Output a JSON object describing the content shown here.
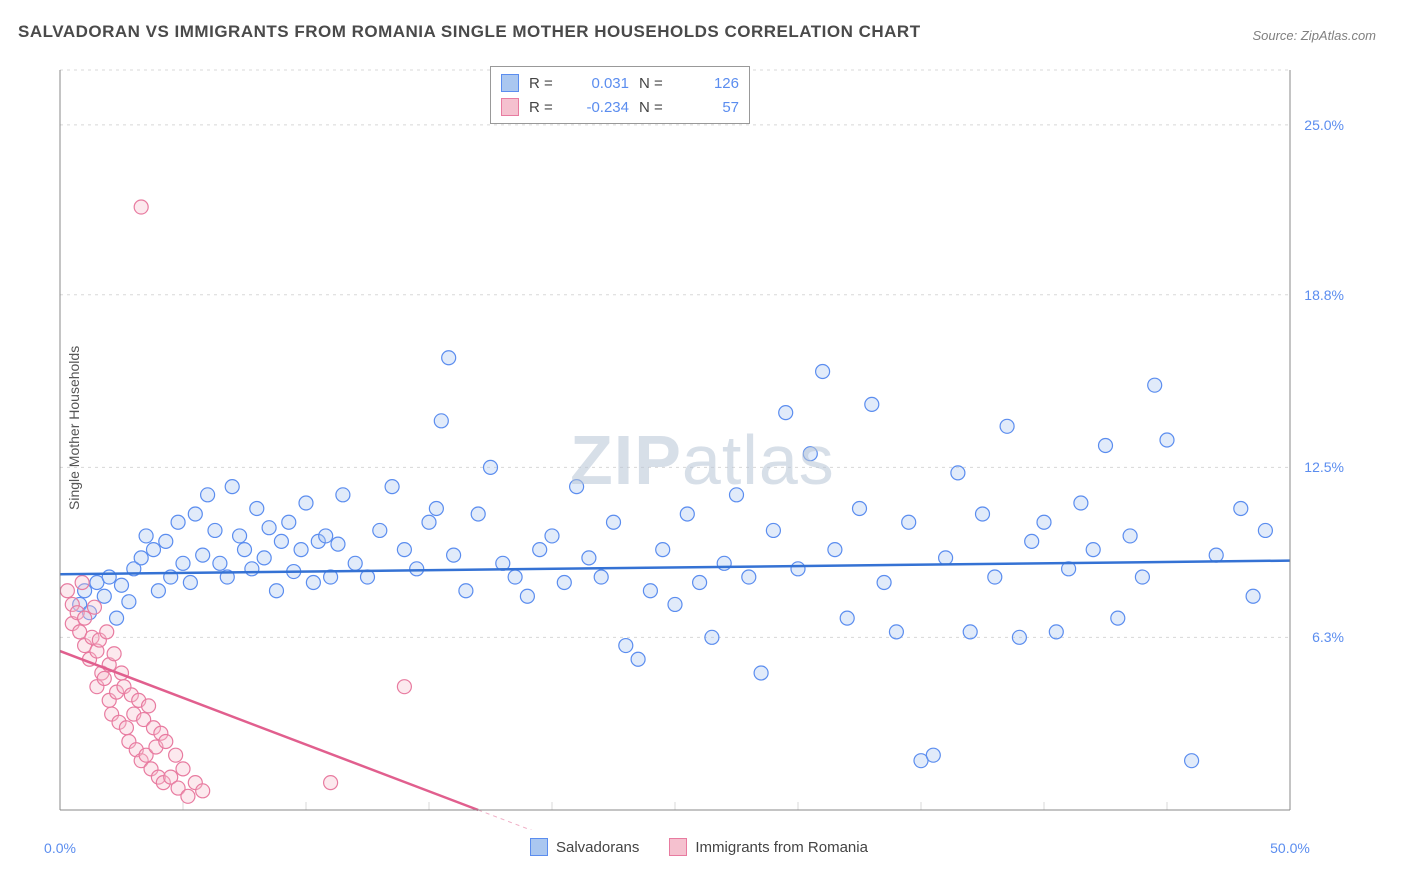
{
  "title": "SALVADORAN VS IMMIGRANTS FROM ROMANIA SINGLE MOTHER HOUSEHOLDS CORRELATION CHART",
  "source": "Source: ZipAtlas.com",
  "ylabel": "Single Mother Households",
  "watermark_a": "ZIP",
  "watermark_b": "atlas",
  "chart": {
    "type": "scatter",
    "xlim": [
      0,
      50
    ],
    "ylim": [
      0,
      27
    ],
    "ytick_values": [
      6.3,
      12.5,
      18.8,
      25.0
    ],
    "ytick_labels": [
      "6.3%",
      "12.5%",
      "18.8%",
      "25.0%"
    ],
    "xtick_values": [
      0,
      50
    ],
    "xtick_labels": [
      "0.0%",
      "50.0%"
    ],
    "minor_gridlines_y_step": 6.25,
    "minor_gridlines_x_count": 10,
    "grid_color": "#d8d8d8",
    "axis_color": "#888888",
    "background_color": "#ffffff",
    "marker_radius": 7,
    "marker_stroke_width": 1.2,
    "marker_fill_opacity": 0.35,
    "trend_line_width": 2.5,
    "series": [
      {
        "name": "Salvadorans",
        "color_fill": "#aac7f0",
        "color_stroke": "#5b8def",
        "trend_color": "#3572d4",
        "R": "0.031",
        "N": "126",
        "trend": {
          "x1": 0,
          "y1": 8.6,
          "x2": 50,
          "y2": 9.1
        },
        "points": [
          [
            0.8,
            7.5
          ],
          [
            1.0,
            8.0
          ],
          [
            1.2,
            7.2
          ],
          [
            1.5,
            8.3
          ],
          [
            1.8,
            7.8
          ],
          [
            2.0,
            8.5
          ],
          [
            2.3,
            7.0
          ],
          [
            2.5,
            8.2
          ],
          [
            2.8,
            7.6
          ],
          [
            3.0,
            8.8
          ],
          [
            3.3,
            9.2
          ],
          [
            3.5,
            10.0
          ],
          [
            3.8,
            9.5
          ],
          [
            4.0,
            8.0
          ],
          [
            4.3,
            9.8
          ],
          [
            4.5,
            8.5
          ],
          [
            4.8,
            10.5
          ],
          [
            5.0,
            9.0
          ],
          [
            5.3,
            8.3
          ],
          [
            5.5,
            10.8
          ],
          [
            5.8,
            9.3
          ],
          [
            6.0,
            11.5
          ],
          [
            6.3,
            10.2
          ],
          [
            6.5,
            9.0
          ],
          [
            6.8,
            8.5
          ],
          [
            7.0,
            11.8
          ],
          [
            7.3,
            10.0
          ],
          [
            7.5,
            9.5
          ],
          [
            7.8,
            8.8
          ],
          [
            8.0,
            11.0
          ],
          [
            8.3,
            9.2
          ],
          [
            8.5,
            10.3
          ],
          [
            8.8,
            8.0
          ],
          [
            9.0,
            9.8
          ],
          [
            9.3,
            10.5
          ],
          [
            9.5,
            8.7
          ],
          [
            9.8,
            9.5
          ],
          [
            10.0,
            11.2
          ],
          [
            10.3,
            8.3
          ],
          [
            10.5,
            9.8
          ],
          [
            10.8,
            10.0
          ],
          [
            11.0,
            8.5
          ],
          [
            11.3,
            9.7
          ],
          [
            11.5,
            11.5
          ],
          [
            12.0,
            9.0
          ],
          [
            12.5,
            8.5
          ],
          [
            13.0,
            10.2
          ],
          [
            13.5,
            11.8
          ],
          [
            14.0,
            9.5
          ],
          [
            14.5,
            8.8
          ],
          [
            15.0,
            10.5
          ],
          [
            15.3,
            11.0
          ],
          [
            15.5,
            14.2
          ],
          [
            15.8,
            16.5
          ],
          [
            16.0,
            9.3
          ],
          [
            16.5,
            8.0
          ],
          [
            17.0,
            10.8
          ],
          [
            17.5,
            12.5
          ],
          [
            18.0,
            9.0
          ],
          [
            18.5,
            8.5
          ],
          [
            19.0,
            7.8
          ],
          [
            19.5,
            9.5
          ],
          [
            20.0,
            10.0
          ],
          [
            20.5,
            8.3
          ],
          [
            21.0,
            11.8
          ],
          [
            21.5,
            9.2
          ],
          [
            22.0,
            8.5
          ],
          [
            22.5,
            10.5
          ],
          [
            23.0,
            6.0
          ],
          [
            23.5,
            5.5
          ],
          [
            24.0,
            8.0
          ],
          [
            24.5,
            9.5
          ],
          [
            25.0,
            7.5
          ],
          [
            25.5,
            10.8
          ],
          [
            26.0,
            8.3
          ],
          [
            26.5,
            6.3
          ],
          [
            27.0,
            9.0
          ],
          [
            27.5,
            11.5
          ],
          [
            28.0,
            8.5
          ],
          [
            28.5,
            5.0
          ],
          [
            29.0,
            10.2
          ],
          [
            29.5,
            14.5
          ],
          [
            30.0,
            8.8
          ],
          [
            30.5,
            13.0
          ],
          [
            31.0,
            16.0
          ],
          [
            31.5,
            9.5
          ],
          [
            32.0,
            7.0
          ],
          [
            32.5,
            11.0
          ],
          [
            33.0,
            14.8
          ],
          [
            33.5,
            8.3
          ],
          [
            34.0,
            6.5
          ],
          [
            34.5,
            10.5
          ],
          [
            35.0,
            1.8
          ],
          [
            35.5,
            2.0
          ],
          [
            36.0,
            9.2
          ],
          [
            36.5,
            12.3
          ],
          [
            37.0,
            6.5
          ],
          [
            37.5,
            10.8
          ],
          [
            38.0,
            8.5
          ],
          [
            38.5,
            14.0
          ],
          [
            39.0,
            6.3
          ],
          [
            39.5,
            9.8
          ],
          [
            40.0,
            10.5
          ],
          [
            40.5,
            6.5
          ],
          [
            41.0,
            8.8
          ],
          [
            41.5,
            11.2
          ],
          [
            42.0,
            9.5
          ],
          [
            42.5,
            13.3
          ],
          [
            43.0,
            7.0
          ],
          [
            43.5,
            10.0
          ],
          [
            44.0,
            8.5
          ],
          [
            44.5,
            15.5
          ],
          [
            45.0,
            13.5
          ],
          [
            46.0,
            1.8
          ],
          [
            47.0,
            9.3
          ],
          [
            48.0,
            11.0
          ],
          [
            48.5,
            7.8
          ],
          [
            49.0,
            10.2
          ]
        ]
      },
      {
        "name": "Immigrants from Romania",
        "color_fill": "#f5c1cf",
        "color_stroke": "#e87ba0",
        "trend_color": "#e15f8e",
        "R": "-0.234",
        "N": "57",
        "trend": {
          "x1": 0,
          "y1": 5.8,
          "x2": 17,
          "y2": 0
        },
        "points": [
          [
            0.3,
            8.0
          ],
          [
            0.5,
            7.5
          ],
          [
            0.5,
            6.8
          ],
          [
            0.7,
            7.2
          ],
          [
            0.8,
            6.5
          ],
          [
            0.9,
            8.3
          ],
          [
            1.0,
            6.0
          ],
          [
            1.0,
            7.0
          ],
          [
            1.2,
            5.5
          ],
          [
            1.3,
            6.3
          ],
          [
            1.4,
            7.4
          ],
          [
            1.5,
            5.8
          ],
          [
            1.5,
            4.5
          ],
          [
            1.6,
            6.2
          ],
          [
            1.7,
            5.0
          ],
          [
            1.8,
            4.8
          ],
          [
            1.9,
            6.5
          ],
          [
            2.0,
            5.3
          ],
          [
            2.0,
            4.0
          ],
          [
            2.1,
            3.5
          ],
          [
            2.2,
            5.7
          ],
          [
            2.3,
            4.3
          ],
          [
            2.4,
            3.2
          ],
          [
            2.5,
            5.0
          ],
          [
            2.6,
            4.5
          ],
          [
            2.7,
            3.0
          ],
          [
            2.8,
            2.5
          ],
          [
            2.9,
            4.2
          ],
          [
            3.0,
            3.5
          ],
          [
            3.1,
            2.2
          ],
          [
            3.2,
            4.0
          ],
          [
            3.3,
            1.8
          ],
          [
            3.4,
            3.3
          ],
          [
            3.5,
            2.0
          ],
          [
            3.6,
            3.8
          ],
          [
            3.7,
            1.5
          ],
          [
            3.8,
            3.0
          ],
          [
            3.9,
            2.3
          ],
          [
            4.0,
            1.2
          ],
          [
            4.1,
            2.8
          ],
          [
            4.2,
            1.0
          ],
          [
            4.3,
            2.5
          ],
          [
            4.5,
            1.2
          ],
          [
            4.7,
            2.0
          ],
          [
            4.8,
            0.8
          ],
          [
            5.0,
            1.5
          ],
          [
            5.2,
            0.5
          ],
          [
            5.5,
            1.0
          ],
          [
            5.8,
            0.7
          ],
          [
            3.3,
            22.0
          ],
          [
            11.0,
            1.0
          ],
          [
            14.0,
            4.5
          ]
        ]
      }
    ]
  },
  "legend_labels": {
    "salvadorans": "Salvadorans",
    "romania": "Immigrants from Romania"
  }
}
